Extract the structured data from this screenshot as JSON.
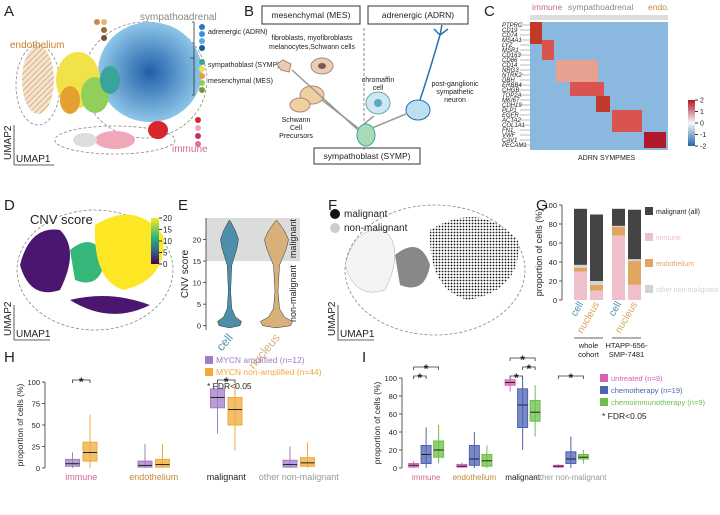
{
  "panel_labels": [
    "A",
    "B",
    "C",
    "D",
    "E",
    "F",
    "G",
    "H",
    "I"
  ],
  "umap_a": {
    "x_label": "UMAP1",
    "y_label": "UMAP2",
    "endothelium": "endothelium",
    "sympathoadrenal": "sympathoadrenal",
    "immune": "immune",
    "legend": [
      "adrenergic (ADRN)",
      "sympathoblast (SYMP)",
      "mesenchymal (MES)"
    ]
  },
  "diagram_b": {
    "mes": "mesenchymal (MES)",
    "adrn": "adrenergic (ADRN)",
    "mes_cells": [
      "fibroblasts, myofibroblasts",
      "melanocytes,Schwann cells"
    ],
    "scp": [
      "Schwann",
      "Cell",
      "Precursors"
    ],
    "chromaffin": [
      "chromaffin",
      "cell"
    ],
    "neuron": [
      "post-ganglionic",
      "sympathetic",
      "neuron"
    ],
    "symp": "sympathoblast (SYMP)"
  },
  "heatmap_c": {
    "groups": [
      "immune",
      "sympathoadrenal",
      "endo."
    ],
    "genes": [
      "PTPRC",
      "CD19",
      "CD74",
      "MS4A1",
      "LYZ",
      "MSR1",
      "CD163",
      "CD86",
      "CD14",
      "NRG3",
      "NTRK2",
      "DBH",
      "ERBB4",
      "CHGB",
      "TOP2A",
      "MKI67",
      "CDH19",
      "PLP1",
      "EGFR",
      "ACTA2",
      "COL1A1",
      "FN1",
      "VWF",
      "CAV1",
      "PECAM1"
    ],
    "col_groups": [
      "ADRN",
      "SYMP",
      "MES"
    ],
    "colorbar_ticks": [
      2,
      1,
      0,
      -1,
      -2
    ]
  },
  "umap_d": {
    "title": "CNV score",
    "colorbar_ticks": [
      0,
      5,
      10,
      15,
      20
    ],
    "x_label": "UMAP1",
    "y_label": "UMAP2"
  },
  "umap_f": {
    "legend": [
      "malignant",
      "non-malignant"
    ],
    "x_label": "UMAP1",
    "y_label": "UMAP2"
  },
  "chart_data": [
    {
      "type": "violin",
      "y_label": "CNV score",
      "categories": [
        "cell",
        "nucleus"
      ],
      "colors": [
        "#4d8fa9",
        "#d8b07a"
      ],
      "ylim": [
        -1,
        25
      ],
      "yticks": [
        0,
        5,
        10,
        15,
        20
      ],
      "shaded_range": [
        15,
        25
      ],
      "region_labels": [
        "malignant",
        "non-malignant"
      ]
    },
    {
      "type": "bar",
      "stacked": true,
      "y_label": "proportion of cells (%)",
      "categories": [
        "cell",
        "nucleus",
        "cell",
        "nucleus"
      ],
      "category_colors": [
        "#4d8fa9",
        "#d8a25a",
        "#4d8fa9",
        "#d8a25a"
      ],
      "groups": [
        [
          "whole",
          "cohort"
        ],
        [
          "HTAPP-656-",
          "SMP-7481"
        ]
      ],
      "ylim": [
        0,
        100
      ],
      "yticks": [
        0,
        20,
        40,
        60,
        80,
        100
      ],
      "series": [
        {
          "name": "malignant (all)",
          "color": "#444444",
          "values": [
            59,
            70,
            18,
            52
          ]
        },
        {
          "name": "immune",
          "color": "#efc0cc",
          "values": [
            30,
            10,
            68,
            16
          ]
        },
        {
          "name": "endothelium",
          "color": "#e0a660",
          "values": [
            4,
            6,
            9,
            25
          ]
        },
        {
          "name": "other non-malignant",
          "color": "#d4d4d4",
          "values": [
            3,
            4,
            1,
            2
          ]
        }
      ]
    },
    {
      "type": "box",
      "y_label": "proportion of cells (%)",
      "categories": [
        "immune",
        "endothelium",
        "malignant",
        "other non-malignant"
      ],
      "category_colors": [
        "#d06b92",
        "#c48a3a",
        "#222222",
        "#999999"
      ],
      "ylim": [
        0,
        100
      ],
      "yticks": [
        0,
        25,
        50,
        75,
        100
      ],
      "note": "* FDR<0.05",
      "series": [
        {
          "name": "MYCN amplified (n=12)",
          "color": "#a27cc6",
          "stats": [
            [
              0,
              2,
              5,
              10,
              18
            ],
            [
              0,
              1,
              3,
              8,
              28
            ],
            [
              40,
              70,
              82,
              92,
              99
            ],
            [
              0,
              1,
              4,
              9,
              25
            ]
          ]
        },
        {
          "name": "MYCN non-amplified (n=44)",
          "color": "#f0a93a",
          "stats": [
            [
              0,
              8,
              18,
              30,
              62
            ],
            [
              0,
              1,
              4,
              10,
              28
            ],
            [
              20,
              50,
              68,
              82,
              99
            ],
            [
              0,
              2,
              6,
              12,
              30
            ]
          ]
        }
      ],
      "annotations": [
        {
          "text": "*",
          "category": "immune"
        },
        {
          "text": "*",
          "category": "malignant"
        }
      ]
    },
    {
      "type": "box",
      "y_label": "proportion of cells (%)",
      "categories": [
        "immune",
        "endothelium",
        "malignant",
        "other non-malignant"
      ],
      "category_colors": [
        "#d06b92",
        "#c48a3a",
        "#222222",
        "#999999"
      ],
      "ylim": [
        0,
        100
      ],
      "yticks": [
        0,
        20,
        40,
        60,
        80,
        100
      ],
      "note": "* FDR<0.05",
      "series": [
        {
          "name": "untreated (n=9)",
          "color": "#d660b4",
          "stats": [
            [
              0,
              1,
              3,
              5,
              8
            ],
            [
              0,
              1,
              2,
              4,
              6
            ],
            [
              85,
              92,
              95,
              98,
              100
            ],
            [
              0,
              1,
              2,
              3,
              4
            ]
          ]
        },
        {
          "name": "chemotherapy (n=19)",
          "color": "#4d63b3",
          "stats": [
            [
              0,
              5,
              15,
              25,
              45
            ],
            [
              0,
              3,
              10,
              25,
              40
            ],
            [
              20,
              45,
              70,
              88,
              100
            ],
            [
              0,
              5,
              10,
              18,
              35
            ]
          ]
        },
        {
          "name": "chemoimmunotherapy (n=9)",
          "color": "#6cbf48",
          "stats": [
            [
              5,
              12,
              20,
              30,
              48
            ],
            [
              0,
              2,
              8,
              15,
              25
            ],
            [
              35,
              52,
              62,
              75,
              92
            ],
            [
              5,
              10,
              12,
              15,
              20
            ]
          ]
        }
      ],
      "annotations": [
        {
          "text": "*",
          "category": "immune",
          "series": [
            "untreated (n=9)",
            "chemotherapy (n=19)"
          ]
        },
        {
          "text": "*",
          "category": "immune",
          "series": [
            "untreated (n=9)",
            "chemoimmunotherapy (n=9)"
          ]
        },
        {
          "text": "*",
          "category": "malignant",
          "series": [
            "untreated (n=9)",
            "chemotherapy (n=19)"
          ]
        },
        {
          "text": "*",
          "category": "malignant",
          "series": [
            "chemotherapy (n=19)",
            "chemoimmunotherapy (n=9)"
          ]
        },
        {
          "text": "*",
          "category": "malignant",
          "series": [
            "untreated (n=9)",
            "chemoimmunotherapy (n=9)"
          ]
        },
        {
          "text": "*",
          "category": "other non-malignant",
          "series": [
            "untreated (n=9)",
            "chemoimmunotherapy (n=9)"
          ]
        }
      ]
    }
  ]
}
